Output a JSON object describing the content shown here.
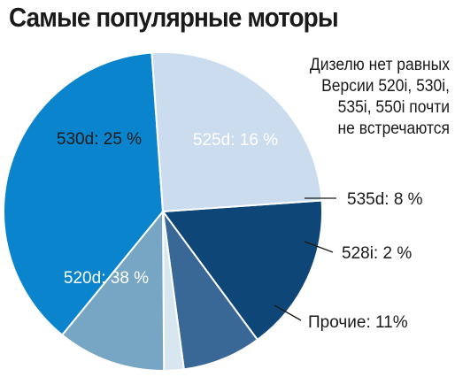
{
  "chart_data": {
    "type": "pie",
    "title": "Самые популярные моторы",
    "note_lines": [
      "Дизелю нет равных",
      "Версии 520i, 530i,",
      "535i, 550i почти",
      "не встречаются"
    ],
    "slices": [
      {
        "category": "525d",
        "value": 16,
        "label": "525d: 16 %",
        "color": "#0e4777",
        "label_color": "#ffffff",
        "label_pos": "inside"
      },
      {
        "category": "535d",
        "value": 8,
        "label": "535d: 8 %",
        "color": "#396796",
        "label_color": "#1a1a1a",
        "label_pos": "outside"
      },
      {
        "category": "528i",
        "value": 2,
        "label": "528i: 2 %",
        "color": "#d8e6f0",
        "label_color": "#1a1a1a",
        "label_pos": "outside"
      },
      {
        "category": "Прочие",
        "value": 11,
        "label": "Прочие: 11%",
        "color": "#77a6c5",
        "label_color": "#1a1a1a",
        "label_pos": "outside"
      },
      {
        "category": "520d",
        "value": 38,
        "label": "520d: 38 %",
        "color": "#0a84cc",
        "label_color": "#ffffff",
        "label_pos": "inside"
      },
      {
        "category": "530d",
        "value": 25,
        "label": "530d: 25 %",
        "color": "#cbdcef",
        "label_color": "#1a1a1a",
        "label_pos": "inside"
      }
    ]
  }
}
